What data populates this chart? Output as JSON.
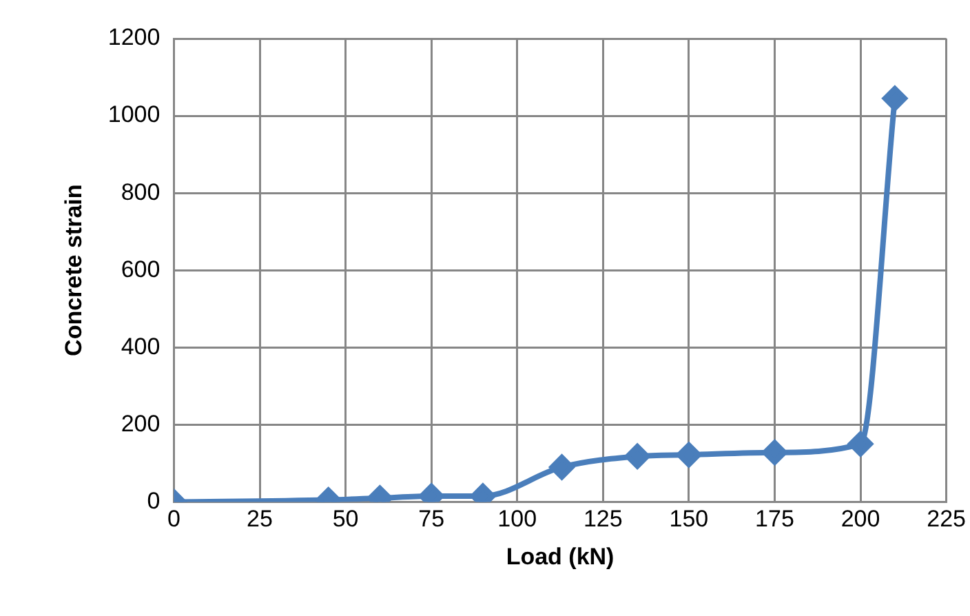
{
  "chart_data": {
    "type": "line",
    "xlabel": "Load (kN)",
    "ylabel": "Concrete strain",
    "x": [
      0,
      45,
      60,
      75,
      90,
      113,
      135,
      150,
      175,
      200,
      210
    ],
    "series": [
      {
        "color": "#4a7ebb",
        "values": [
          0,
          5,
          10,
          15,
          15,
          90,
          118,
          122,
          128,
          150,
          1045
        ]
      }
    ],
    "xlim": [
      0,
      225
    ],
    "xticks": [
      0,
      25,
      50,
      75,
      100,
      125,
      150,
      175,
      200,
      225
    ],
    "ylim": [
      0,
      1200
    ],
    "yticks": [
      0,
      200,
      400,
      600,
      800,
      1000,
      1200
    ],
    "grid": true,
    "legend": false,
    "marker": "diamond",
    "line_style": "solid"
  }
}
